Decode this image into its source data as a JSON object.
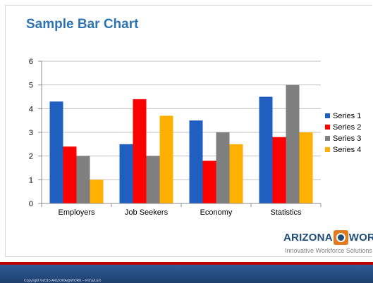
{
  "slide": {
    "logo": {
      "word_left": "ARIZONA",
      "word_right": "WORK",
      "tagline": "Innovative Workforce Solutions"
    },
    "copyright": "Copyright ©2015 ARIZONA@WORK – Pima/LEX"
  },
  "chart_data": {
    "type": "bar",
    "title": "Sample Bar Chart",
    "xlabel": "",
    "ylabel": "",
    "categories": [
      "Employers",
      "Job Seekers",
      "Economy",
      "Statistics"
    ],
    "series": [
      {
        "name": "Series 1",
        "color": "#1f5fbf",
        "values": [
          4.3,
          2.5,
          3.5,
          4.5
        ]
      },
      {
        "name": "Series 2",
        "color": "#ff0000",
        "values": [
          2.4,
          4.4,
          1.8,
          2.8
        ]
      },
      {
        "name": "Series 3",
        "color": "#7f7f7f",
        "values": [
          2.0,
          2.0,
          3.0,
          5.0
        ]
      },
      {
        "name": "Series 4",
        "color": "#ffb000",
        "values": [
          1.0,
          3.7,
          2.5,
          3.0
        ]
      }
    ],
    "ylim": [
      0,
      6
    ],
    "yticks": [
      0,
      1,
      2,
      3,
      4,
      5,
      6
    ],
    "grid": true,
    "legend_position": "right"
  }
}
